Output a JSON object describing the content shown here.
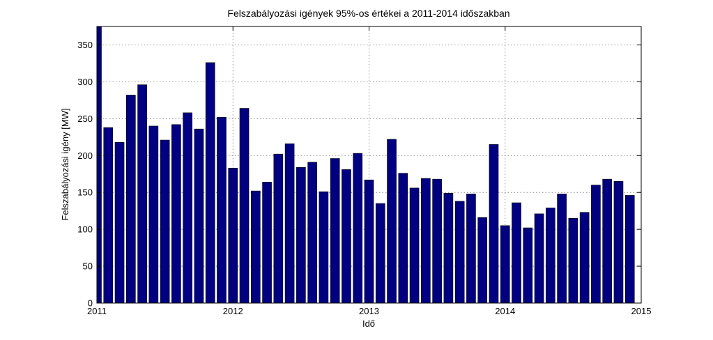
{
  "chart_data": {
    "type": "bar",
    "title": "Felszabályozási igények 95%-os értékei a 2011-2014 időszakban",
    "xlabel": "Idő",
    "ylabel": "Felszabályozási igény [MW]",
    "ylim": [
      0,
      375
    ],
    "xlim": [
      2011,
      2015
    ],
    "grid": true,
    "bar_color": "#000080",
    "x_ticks": [
      "2011",
      "2012",
      "2013",
      "2014",
      "2015"
    ],
    "y_ticks": [
      "0",
      "50",
      "100",
      "150",
      "200",
      "250",
      "300",
      "350"
    ],
    "x": [
      "2011-01",
      "2011-02",
      "2011-03",
      "2011-04",
      "2011-05",
      "2011-06",
      "2011-07",
      "2011-08",
      "2011-09",
      "2011-10",
      "2011-11",
      "2011-12",
      "2012-01",
      "2012-02",
      "2012-03",
      "2012-04",
      "2012-05",
      "2012-06",
      "2012-07",
      "2012-08",
      "2012-09",
      "2012-10",
      "2012-11",
      "2012-12",
      "2013-01",
      "2013-02",
      "2013-03",
      "2013-04",
      "2013-05",
      "2013-06",
      "2013-07",
      "2013-08",
      "2013-09",
      "2013-10",
      "2013-11",
      "2013-12",
      "2014-01",
      "2014-02",
      "2014-03",
      "2014-04",
      "2014-05",
      "2014-06",
      "2014-07",
      "2014-08",
      "2014-09",
      "2014-10",
      "2014-11",
      "2014-12"
    ],
    "values": [
      375,
      238,
      218,
      282,
      296,
      240,
      221,
      242,
      258,
      236,
      326,
      252,
      183,
      264,
      152,
      164,
      202,
      216,
      184,
      191,
      151,
      196,
      181,
      203,
      167,
      135,
      222,
      176,
      156,
      169,
      168,
      149,
      138,
      148,
      116,
      215,
      105,
      136,
      102,
      121,
      129,
      148,
      115,
      123,
      160,
      168,
      165,
      146
    ]
  }
}
